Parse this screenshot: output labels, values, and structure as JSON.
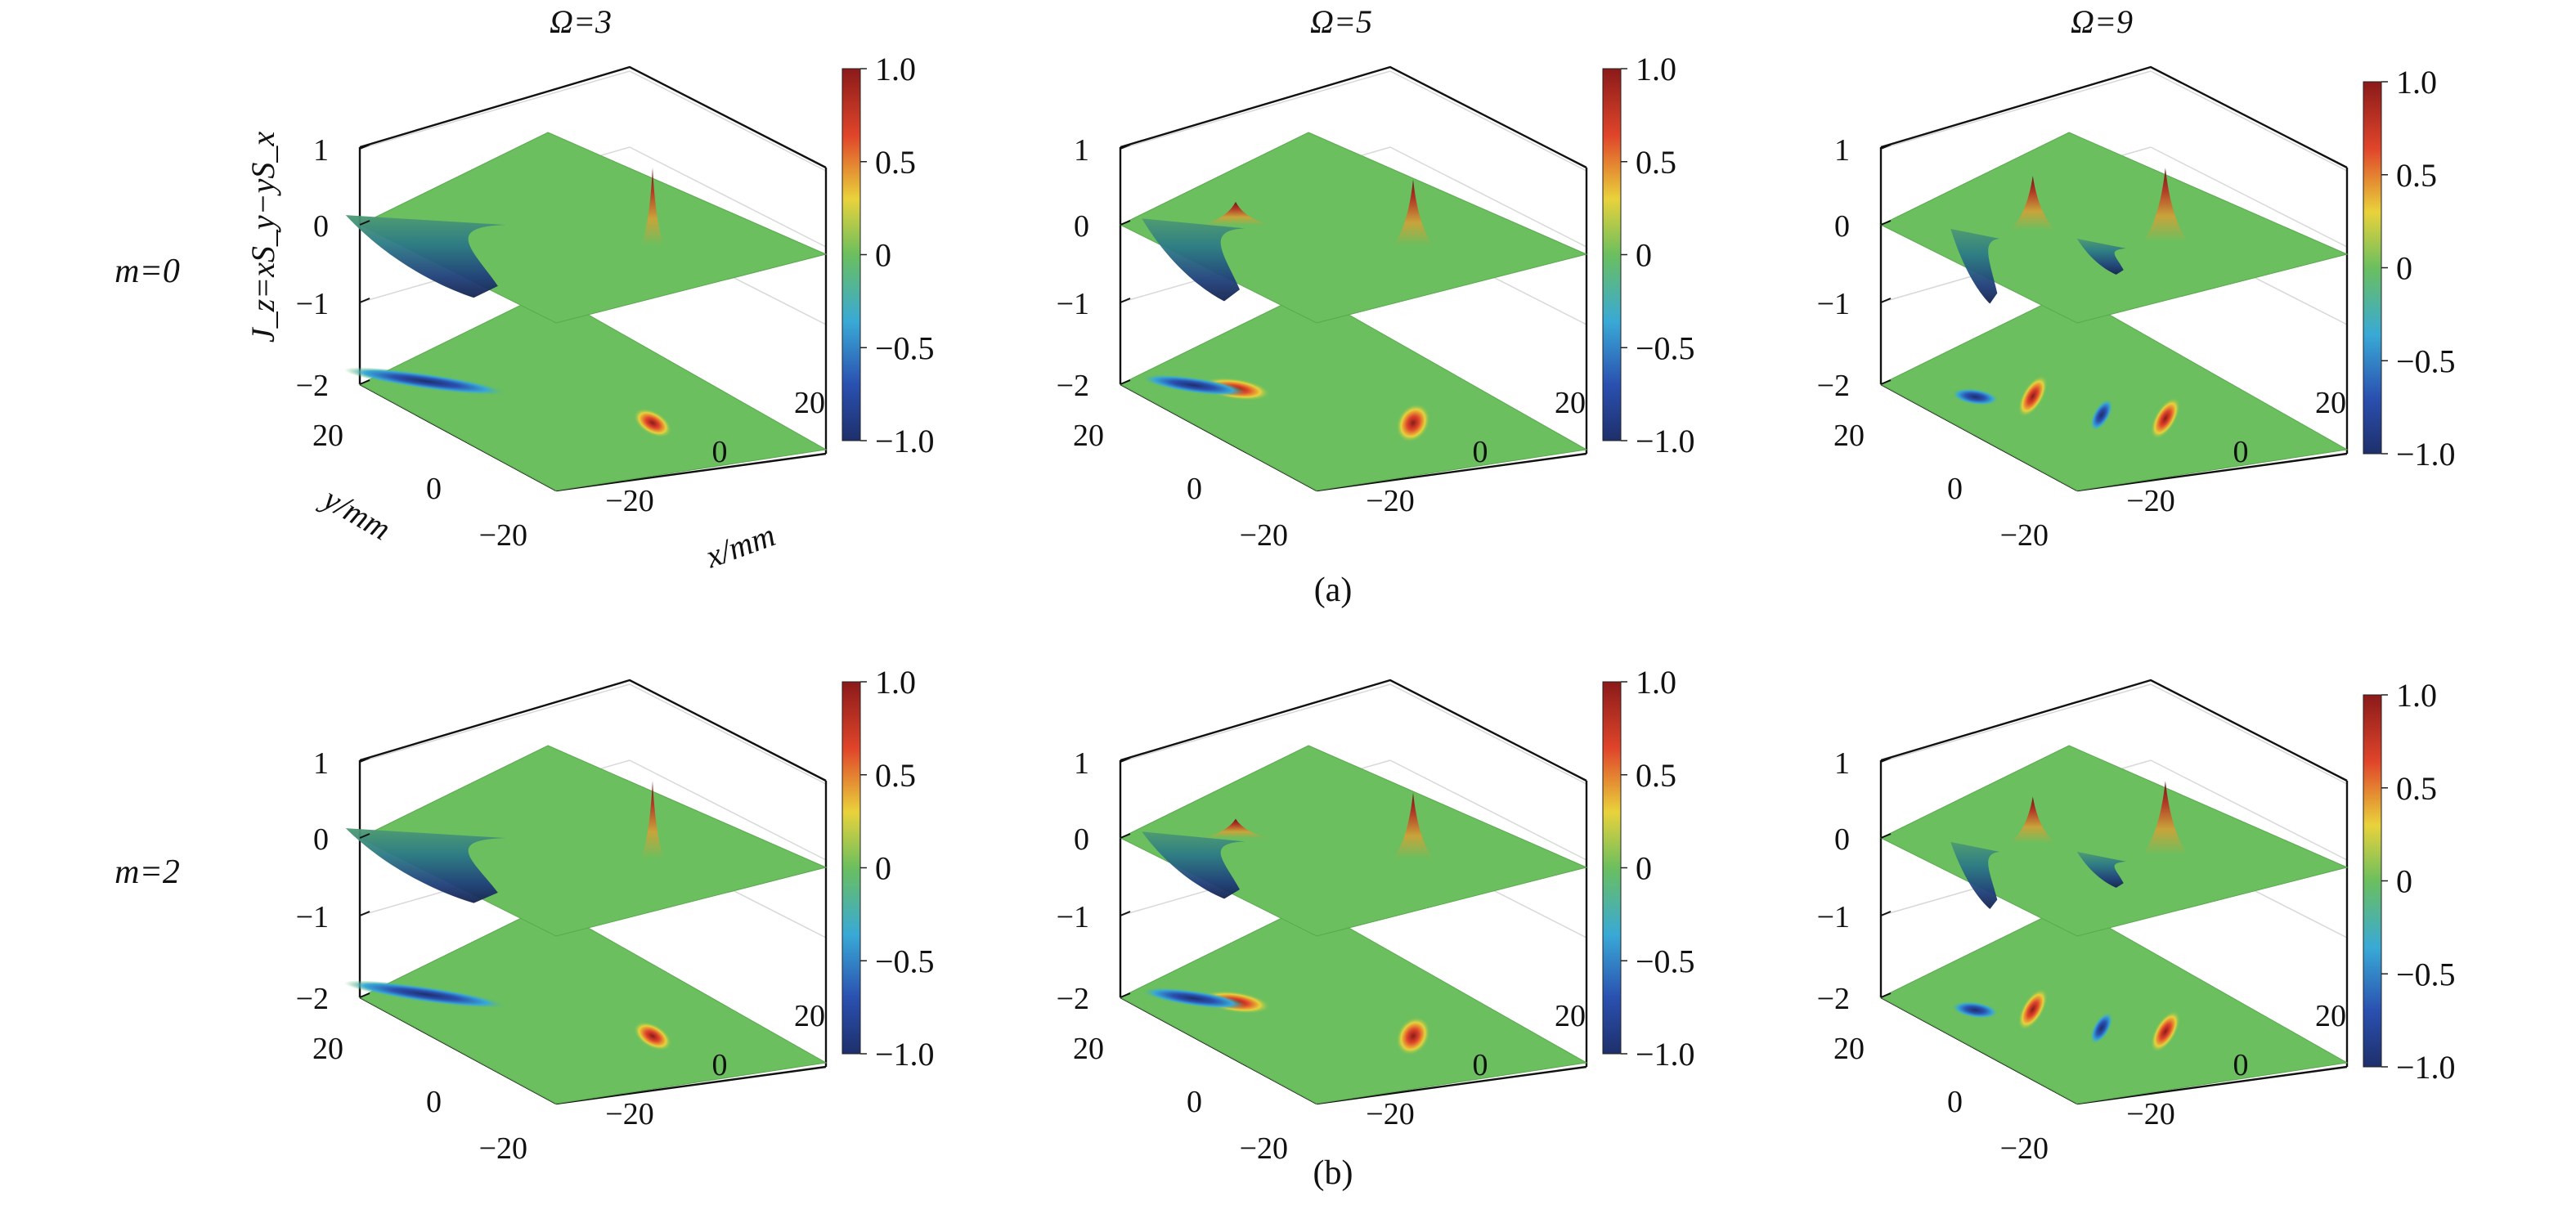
{
  "figure": {
    "row_labels": [
      "m=0",
      "m=2"
    ],
    "col_titles": [
      "Ω=3",
      "Ω=5",
      "Ω=9"
    ],
    "panel_labels": [
      "(a)",
      "(b)"
    ],
    "z_axis_label": "J_z=xS_y−yS_x",
    "x_axis_label": "x/mm",
    "y_axis_label": "y/mm",
    "z_tick_labels": [
      "1",
      "0",
      "−1",
      "−2"
    ],
    "x_tick_labels": [
      "−20",
      "0",
      "20"
    ],
    "y_tick_labels": [
      "20",
      "0",
      "−20"
    ],
    "colorbar_tick_labels": [
      "1.0",
      "0.5",
      "0",
      "−0.5",
      "−1.0"
    ]
  },
  "chart_data": {
    "type": "surface3d",
    "colormap": "jet",
    "colors": {
      "neutral": "#6bbf5e",
      "positive": "#8b1a1a",
      "negative": "#1e2f6b"
    },
    "clim": [
      -1.0,
      1.0
    ],
    "zlim": [
      -2,
      1
    ],
    "xlim": [
      -30,
      30
    ],
    "ylim": [
      -30,
      30
    ],
    "colorbar_ticks": [
      1.0,
      0.5,
      0,
      -0.5,
      -1.0
    ],
    "panels": [
      {
        "row": "m=0",
        "col": "Ω=3",
        "features": [
          {
            "x": 12,
            "y": -8,
            "z": 1.0,
            "sx": 2.0,
            "sy": 8,
            "kind": "peak"
          },
          {
            "x": -22,
            "y": 18,
            "z": -1.0,
            "sx": 14,
            "sy": 3,
            "kind": "trough"
          }
        ]
      },
      {
        "row": "m=0",
        "col": "Ω=5",
        "features": [
          {
            "x": 12,
            "y": -8,
            "z": 0.85,
            "sx": 3.5,
            "sy": 6,
            "kind": "peak"
          },
          {
            "x": -14,
            "y": 12,
            "z": 0.3,
            "sx": 6,
            "sy": 4,
            "kind": "peak"
          },
          {
            "x": -20,
            "y": 18,
            "z": -1.0,
            "sx": 9,
            "sy": 3,
            "kind": "trough"
          }
        ]
      },
      {
        "row": "m=0",
        "col": "Ω=9",
        "features": [
          {
            "x": 10,
            "y": -8,
            "z": 0.95,
            "sx": 4,
            "sy": 4,
            "kind": "peak"
          },
          {
            "x": -8,
            "y": 8,
            "z": 0.7,
            "sx": 4,
            "sy": 4,
            "kind": "peak"
          },
          {
            "x": -14,
            "y": 18,
            "z": -0.9,
            "sx": 4,
            "sy": 3,
            "kind": "trough"
          },
          {
            "x": 4,
            "y": 2,
            "z": -0.4,
            "sx": 3,
            "sy": 3,
            "kind": "trough"
          }
        ]
      },
      {
        "row": "m=2",
        "col": "Ω=3",
        "features": [
          {
            "x": 12,
            "y": -8,
            "z": 1.0,
            "sx": 2.0,
            "sy": 8,
            "kind": "peak"
          },
          {
            "x": -22,
            "y": 18,
            "z": -0.9,
            "sx": 14,
            "sy": 3,
            "kind": "trough"
          }
        ]
      },
      {
        "row": "m=2",
        "col": "Ω=5",
        "features": [
          {
            "x": 12,
            "y": -8,
            "z": 0.85,
            "sx": 3.5,
            "sy": 6,
            "kind": "peak"
          },
          {
            "x": -14,
            "y": 12,
            "z": 0.25,
            "sx": 6,
            "sy": 4,
            "kind": "peak"
          },
          {
            "x": -20,
            "y": 18,
            "z": -0.8,
            "sx": 9,
            "sy": 3,
            "kind": "trough"
          }
        ]
      },
      {
        "row": "m=2",
        "col": "Ω=9",
        "features": [
          {
            "x": 10,
            "y": -8,
            "z": 0.95,
            "sx": 4,
            "sy": 4,
            "kind": "peak"
          },
          {
            "x": -8,
            "y": 8,
            "z": 0.6,
            "sx": 4,
            "sy": 4,
            "kind": "peak"
          },
          {
            "x": -14,
            "y": 18,
            "z": -0.8,
            "sx": 4,
            "sy": 3,
            "kind": "trough"
          },
          {
            "x": 4,
            "y": 2,
            "z": -0.4,
            "sx": 3,
            "sy": 3,
            "kind": "trough"
          }
        ]
      }
    ]
  }
}
